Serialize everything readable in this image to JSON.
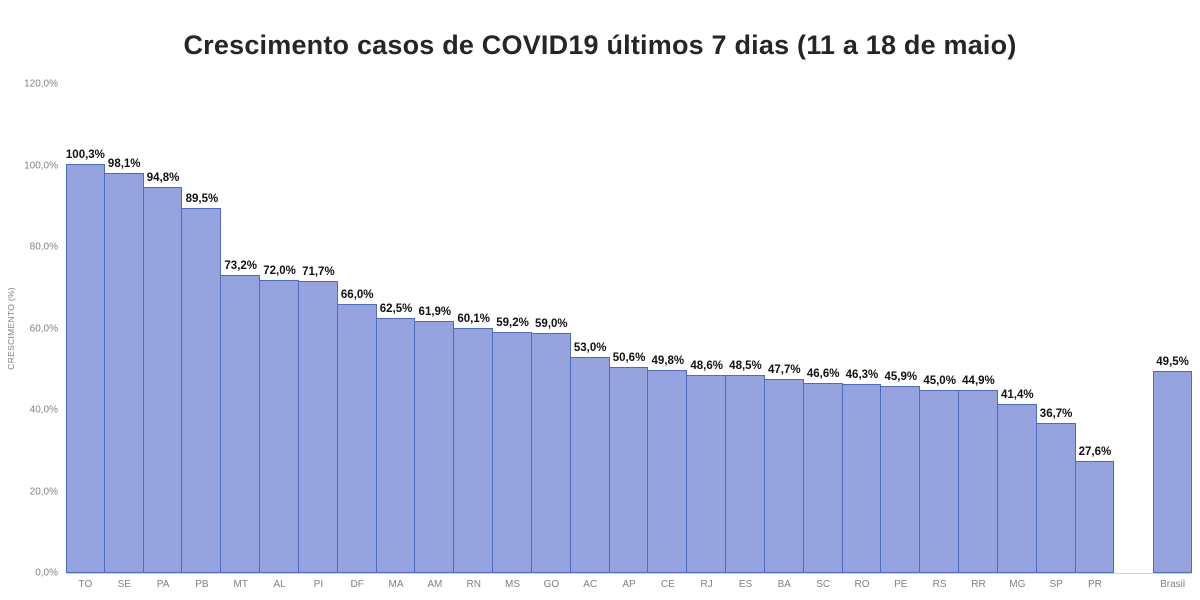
{
  "chart_data": {
    "type": "bar",
    "title": "Crescimento casos de COVID19 últimos 7 dias (11 a 18 de maio)",
    "xlabel": "",
    "ylabel": "CRESCIMENTO (%)",
    "ylim": [
      0,
      120
    ],
    "grid": false,
    "legend": null,
    "y_tick_values": [
      0,
      20,
      40,
      60,
      80,
      100,
      120
    ],
    "y_tick_labels": [
      "0,0%",
      "20,0%",
      "40,0%",
      "60,0%",
      "80,0%",
      "100,0%",
      "120,0%"
    ],
    "categories": [
      "TO",
      "SE",
      "PA",
      "PB",
      "MT",
      "AL",
      "PI",
      "DF",
      "MA",
      "AM",
      "RN",
      "MS",
      "GO",
      "AC",
      "AP",
      "CE",
      "RJ",
      "ES",
      "BA",
      "SC",
      "RO",
      "PE",
      "RS",
      "RR",
      "MG",
      "SP",
      "PR",
      "Brasil"
    ],
    "values": [
      100.3,
      98.1,
      94.8,
      89.5,
      73.2,
      72.0,
      71.7,
      66.0,
      62.5,
      61.9,
      60.1,
      59.2,
      59.0,
      53.0,
      50.6,
      49.8,
      48.6,
      48.5,
      47.7,
      46.6,
      46.3,
      45.9,
      45.0,
      44.9,
      41.4,
      36.7,
      27.6,
      49.5
    ],
    "value_labels": [
      "100,3%",
      "98,1%",
      "94,8%",
      "89,5%",
      "73,2%",
      "72,0%",
      "71,7%",
      "66,0%",
      "62,5%",
      "61,9%",
      "60,1%",
      "59,2%",
      "59,0%",
      "53,0%",
      "50,6%",
      "49,8%",
      "48,6%",
      "48,5%",
      "47,7%",
      "46,6%",
      "46,3%",
      "45,9%",
      "45,0%",
      "44,9%",
      "41,4%",
      "36,7%",
      "27,6%",
      "49,5%"
    ],
    "gap_before_category": "Brasil",
    "colors": {
      "bar_fill": "#95a3df",
      "bar_border": "#4f6bc0",
      "value_label": "#111111",
      "axis_text": "#808080",
      "title_text": "#262626",
      "baseline": "#ccd2e6"
    }
  }
}
